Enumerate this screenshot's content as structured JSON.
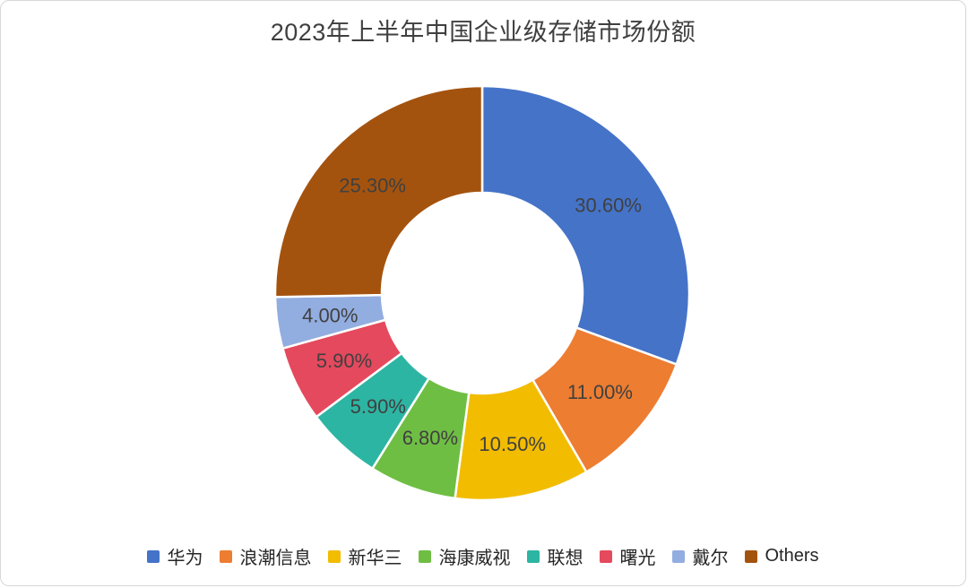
{
  "title": "2023年上半年中国企业级存储市场份额",
  "chart_data": {
    "type": "pie",
    "subtype": "donut",
    "title": "2023年上半年中国企业级存储市场份额",
    "categories": [
      "华为",
      "浪潮信息",
      "新华三",
      "海康威视",
      "联想",
      "曙光",
      "戴尔",
      "Others"
    ],
    "values": [
      30.6,
      11.0,
      10.5,
      6.8,
      5.9,
      5.9,
      4.0,
      25.3
    ],
    "labels": [
      "30.60%",
      "11.00%",
      "10.50%",
      "6.80%",
      "5.90%",
      "5.90%",
      "4.00%",
      "25.30%"
    ],
    "colors": [
      "#4573C8",
      "#ED7D31",
      "#F2BC00",
      "#6FBE44",
      "#2DB5A3",
      "#E5495E",
      "#92ADE0",
      "#A4530F"
    ],
    "units": "%",
    "start_angle_deg": 0,
    "direction": "clockwise",
    "donut_hole_ratio": 0.485,
    "legend_position": "bottom",
    "label_color": "#404040",
    "separator_color": "#ffffff"
  }
}
